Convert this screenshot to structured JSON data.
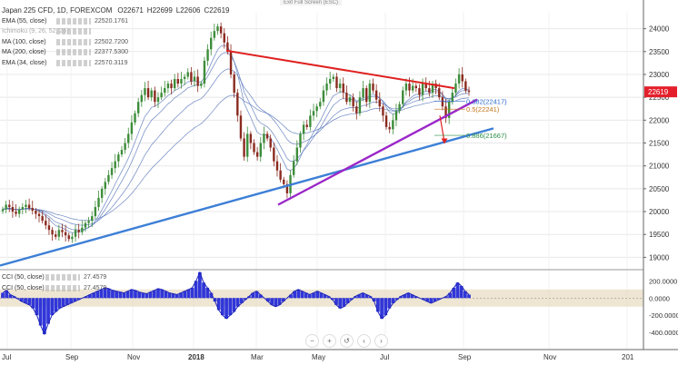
{
  "header": {
    "exit_fullscreen": "Exit Full Screen (ESC)",
    "symbol": "Japan 225 CFD, 1D, FOREXCOM",
    "open": "O22671",
    "high": "H22699",
    "low": "L22606",
    "close": "C22619"
  },
  "indicators": [
    {
      "label": "EMA (55, close)",
      "value": "22520.1761"
    },
    {
      "label": "Ichimoku (9, 26, 52, 26)",
      "value": ""
    },
    {
      "label": "MA (100, close)",
      "value": "22502.7200"
    },
    {
      "label": "MA (200, close)",
      "value": "22377.5300"
    },
    {
      "label": "EMA (34, close)",
      "value": "22570.3119"
    }
  ],
  "cci_indicators": [
    {
      "label": "CCI (50, close)",
      "value": "27.4579"
    },
    {
      "label": "CCI (50, close)",
      "value": "27.4579"
    }
  ],
  "navigation": {
    "minus": "−",
    "plus": "+",
    "back": "↺",
    "left": "‹",
    "right": "›"
  },
  "colors": {
    "up": "#3d8d3a",
    "down": "#8b2a1f",
    "red_line": "#e02121",
    "purple_line": "#9b27c9",
    "blue_line": "#3d7fd6",
    "ma_line": "#5472b8",
    "cci_fill": "#3036d8",
    "cci_band": "#eadfc8",
    "price_tag": "#e41f2b"
  },
  "chart_data": [
    {
      "type": "candlestick",
      "title": "Japan 225 CFD, 1D, FOREXCOM",
      "y_ticks": [
        24000,
        23500,
        23000,
        22500,
        22000,
        21500,
        21000,
        20500,
        20000,
        19500,
        19000
      ],
      "ylim": [
        18750,
        24350
      ],
      "x_ticks": [
        "Jul",
        "Sep",
        "Nov",
        "2018",
        "Mar",
        "May",
        "Jul",
        "Sep",
        "Nov",
        "201"
      ],
      "last_price": 22619,
      "price_tag": "22619",
      "series_close": [
        20050,
        20150,
        20100,
        20000,
        19950,
        20050,
        20100,
        20150,
        20080,
        20020,
        19950,
        19900,
        19800,
        19700,
        19600,
        19500,
        19450,
        19600,
        19550,
        19480,
        19400,
        19450,
        19600,
        19550,
        19650,
        19750,
        19800,
        19900,
        20100,
        20300,
        20500,
        20650,
        20800,
        20950,
        21100,
        21250,
        21350,
        21500,
        21700,
        21950,
        22150,
        22400,
        22550,
        22700,
        22500,
        22650,
        22400,
        22500,
        22600,
        22700,
        22800,
        22700,
        22900,
        22800,
        22900,
        22950,
        23050,
        22850,
        22950,
        22750,
        22800,
        23300,
        23550,
        23800,
        23950,
        24050,
        23900,
        23700,
        23500,
        23000,
        22600,
        22100,
        21600,
        21200,
        21700,
        21500,
        21300,
        21200,
        21500,
        21700,
        21600,
        21400,
        21100,
        20900,
        20700,
        20600,
        20400,
        20800,
        21100,
        21400,
        21700,
        21900,
        21850,
        22100,
        22200,
        22300,
        22400,
        22650,
        22800,
        22900,
        22950,
        22700,
        22800,
        22600,
        22400,
        22500,
        22300,
        22150,
        22500,
        22700,
        22400,
        22800,
        22650,
        22450,
        22300,
        22100,
        21850,
        21800,
        22000,
        22200,
        22350,
        22650,
        22800,
        22650,
        22750,
        22700,
        22550,
        22800,
        22700,
        22600,
        22800,
        22700,
        22500,
        22300,
        22050,
        22400,
        22600,
        22800,
        23000,
        22850,
        22650,
        22619
      ],
      "series": [
        {
          "name": "EMA (55, close)"
        },
        {
          "name": "MA (100, close)"
        },
        {
          "name": "MA (200, close)"
        },
        {
          "name": "EMA (34, close)"
        }
      ],
      "fibonacci": [
        {
          "label": "0.382(22417)",
          "value": 22417
        },
        {
          "label": "0.5(22241)",
          "value": 22241
        },
        {
          "label": "0.886(21667)",
          "value": 21667
        }
      ]
    },
    {
      "type": "area",
      "title": "CCI (50, close)",
      "y_ticks": [
        200,
        0,
        -200,
        -400
      ],
      "y_tick_labels": [
        "200.0000",
        "0.0000",
        "-200.0000",
        "-400.0000"
      ],
      "ylim": [
        -420,
        320
      ],
      "band": [
        -100,
        100
      ],
      "values": [
        60,
        90,
        40,
        20,
        -10,
        -40,
        -60,
        -80,
        -120,
        -200,
        -320,
        -420,
        -300,
        -200,
        -160,
        -120,
        -100,
        -80,
        -60,
        -40,
        -20,
        0,
        20,
        40,
        60,
        80,
        100,
        120,
        110,
        90,
        80,
        70,
        60,
        80,
        100,
        90,
        70,
        60,
        50,
        70,
        90,
        110,
        100,
        80,
        60,
        50,
        40,
        60,
        80,
        100,
        120,
        200,
        300,
        180,
        120,
        60,
        -40,
        -140,
        -200,
        -240,
        -200,
        -160,
        -100,
        -60,
        -20,
        20,
        60,
        80,
        40,
        0,
        -40,
        -80,
        -100,
        -80,
        -40,
        0,
        40,
        80,
        100,
        80,
        60,
        40,
        60,
        80,
        60,
        40,
        20,
        -20,
        -80,
        -120,
        -100,
        -60,
        -20,
        20,
        40,
        60,
        40,
        20,
        -40,
        -160,
        -240,
        -200,
        -120,
        -60,
        -20,
        20,
        40,
        60,
        40,
        20,
        0,
        -20,
        -40,
        -60,
        -40,
        -20,
        0,
        20,
        60,
        120,
        180,
        140,
        80,
        40
      ]
    }
  ]
}
